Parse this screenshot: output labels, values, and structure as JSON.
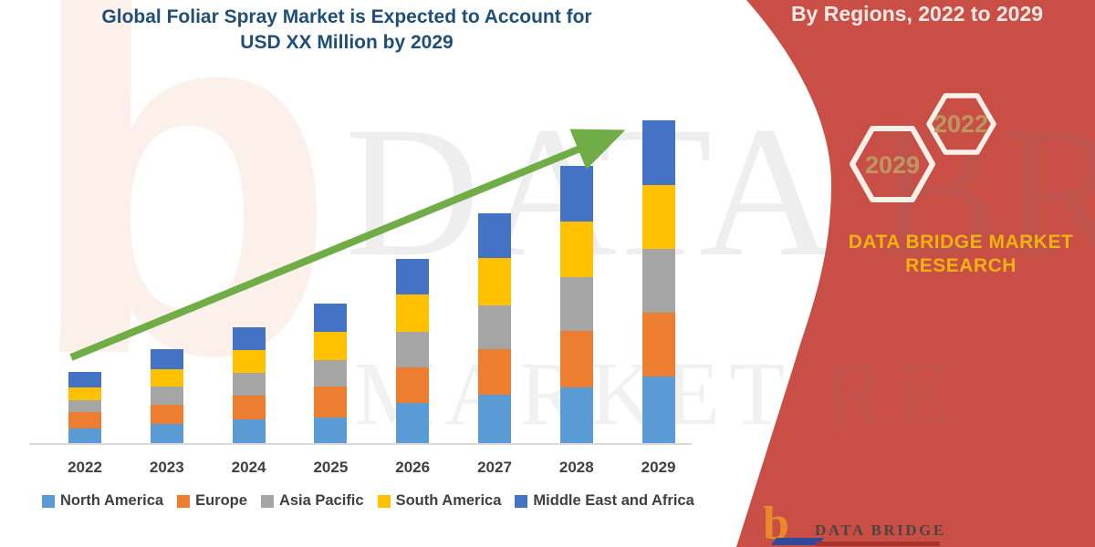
{
  "title": {
    "line1": "Global Foliar Spray Market is Expected to Account for",
    "line2": "USD XX Million by 2029"
  },
  "banner": {
    "heading": "By Regions, 2022 to 2029",
    "hexagons": [
      {
        "label": "2022"
      },
      {
        "label": "2029"
      }
    ],
    "brand_line1": "DATA BRIDGE MARKET",
    "brand_line2": "RESEARCH",
    "colors": {
      "background": "#C94E45",
      "heading_text": "#F9EAE6",
      "hexagon_border": "#F9F1E7",
      "hexagon_text": "#BE9760",
      "brand_text": "#EEB211"
    }
  },
  "watermark": {
    "letter": "b",
    "line1": "DATA BRI",
    "line2": "MARKET RE"
  },
  "footer_logo": {
    "b_glyph": "b",
    "name": "DATA BRIDGE"
  },
  "chart_data": {
    "type": "bar",
    "stacked": true,
    "title": "Global Foliar Spray Market is Expected to Account for USD XX Million by 2029",
    "xlabel": "",
    "ylabel": "",
    "units": "relative units (y-axis unlabeled; market size shown as USD XX Million placeholder)",
    "grid": false,
    "legend_position": "bottom",
    "trend_arrow": true,
    "trend_arrow_color": "#70AD47",
    "categories": [
      "2022",
      "2023",
      "2024",
      "2025",
      "2026",
      "2027",
      "2028",
      "2029"
    ],
    "series": [
      {
        "name": "North America",
        "color": "#5B9BD5",
        "values": [
          16,
          21,
          26,
          28,
          44,
          53,
          61,
          73
        ]
      },
      {
        "name": "Europe",
        "color": "#ED7D31",
        "values": [
          18,
          21,
          26,
          34,
          39,
          50,
          62,
          70
        ]
      },
      {
        "name": "Asia Pacific",
        "color": "#A5A5A5",
        "values": [
          13,
          20,
          25,
          29,
          39,
          48,
          59,
          70
        ]
      },
      {
        "name": "South America",
        "color": "#FFC000",
        "values": [
          14,
          19,
          25,
          31,
          41,
          52,
          61,
          70
        ]
      },
      {
        "name": "Middle East and Africa",
        "color": "#4472C4",
        "values": [
          17,
          22,
          25,
          31,
          39,
          49,
          61,
          71
        ]
      }
    ],
    "totals_relative": [
      78,
      103,
      127,
      153,
      202,
      252,
      304,
      354
    ]
  }
}
